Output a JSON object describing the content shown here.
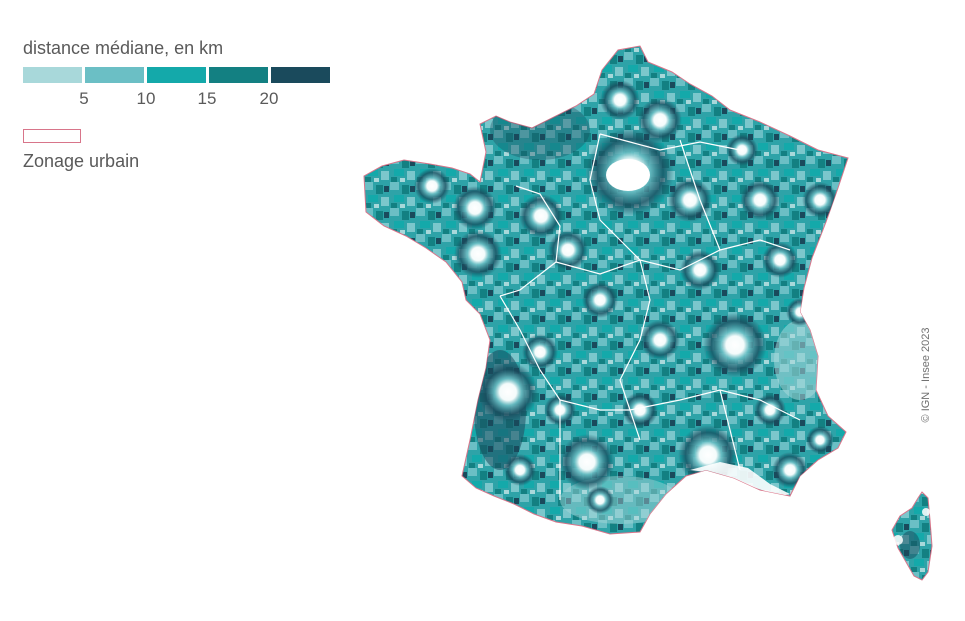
{
  "legend": {
    "title": "distance médiane, en km",
    "scale_colors": [
      "#a8d8da",
      "#6bbfc5",
      "#14a9aa",
      "#138082",
      "#1a4a5c"
    ],
    "scale_ticks": [
      "5",
      "10",
      "15",
      "20"
    ],
    "urban_zone_color": "#d8758a",
    "urban_zone_label": "Zonage urbain"
  },
  "map": {
    "regions": [
      "France métropolitaine",
      "Corse"
    ],
    "urban_outline_color": "#d8758a",
    "region_border_color": "#ffffff"
  },
  "credit": "© IGN - Insee 2023"
}
